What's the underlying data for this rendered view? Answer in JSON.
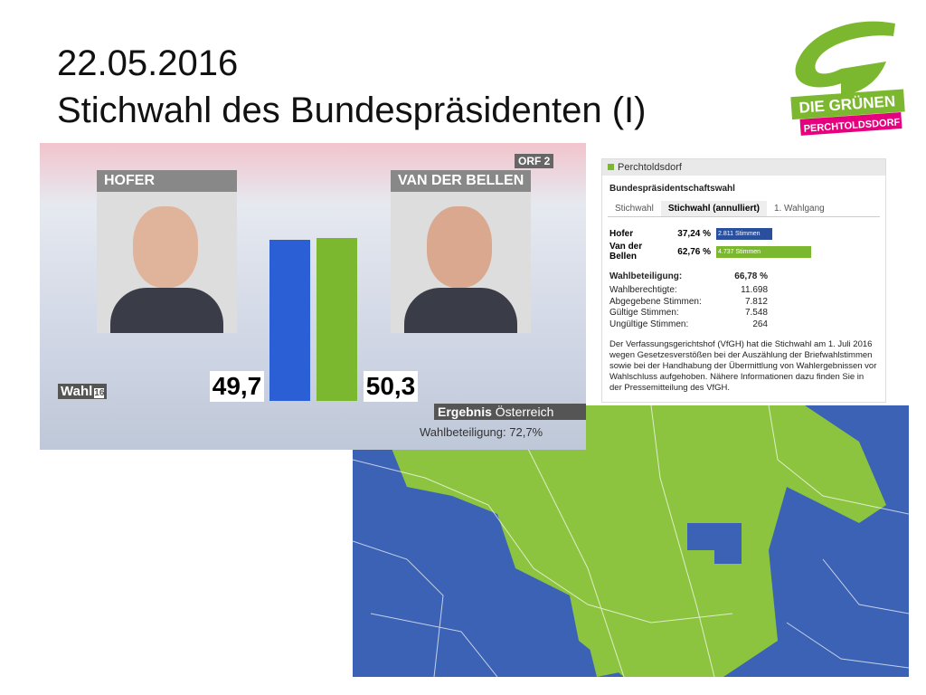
{
  "title": {
    "line1": "22.05.2016",
    "line2": "Stichwahl des Bundespräsidenten (I)"
  },
  "logo": {
    "party": "DIE GRÜNEN",
    "place": "PERCHTOLDSDORF"
  },
  "tv": {
    "channel": "ORF 2",
    "show": "Wahl",
    "show_year": "16",
    "candidates": [
      {
        "name": "HOFER",
        "value": 49.7,
        "value_label": "49,7",
        "color": "#2a5fd6"
      },
      {
        "name": "VAN DER BELLEN",
        "value": 50.3,
        "value_label": "50,3",
        "color": "#7cb82f"
      }
    ],
    "result_label": "Ergebnis",
    "result_region": "Österreich",
    "turnout": "Wahlbeteiligung: 72,7%"
  },
  "widget": {
    "place": "Perchtoldsdorf",
    "title": "Bundespräsidentschaftswahl",
    "tabs": [
      "Stichwahl",
      "Stichwahl (annulliert)",
      "1. Wahlgang"
    ],
    "results": [
      {
        "name": "Hofer",
        "value": 37.24,
        "value_label": "37,24 %",
        "votes": "2.811 Stimmen",
        "color": "#2a4f9c"
      },
      {
        "name": "Van der Bellen",
        "value": 62.76,
        "value_label": "62,76 %",
        "votes": "4.737 Stimmen",
        "color": "#7cb82f"
      }
    ],
    "turnout_label": "Wahlbeteiligung:",
    "turnout_value": "66,78 %",
    "stats": [
      [
        "Wahlberechtigte:",
        "11.698"
      ],
      [
        "Abgegebene Stimmen:",
        "7.812"
      ],
      [
        "Gültige Stimmen:",
        "7.548"
      ],
      [
        "Ungültige Stimmen:",
        "264"
      ]
    ],
    "note": "Der Verfassungsgerichtshof (VfGH) hat die Stichwahl am 1. Juli 2016 wegen Gesetzesverstößen bei der Auszählung der Briefwahlstimmen sowie bei der Handhabung der Übermittlung von Wahlergebnissen vor Wahlschluss aufgehoben. Nähere Informationen dazu finden Sie in der Pressemitteilung des VfGH."
  }
}
